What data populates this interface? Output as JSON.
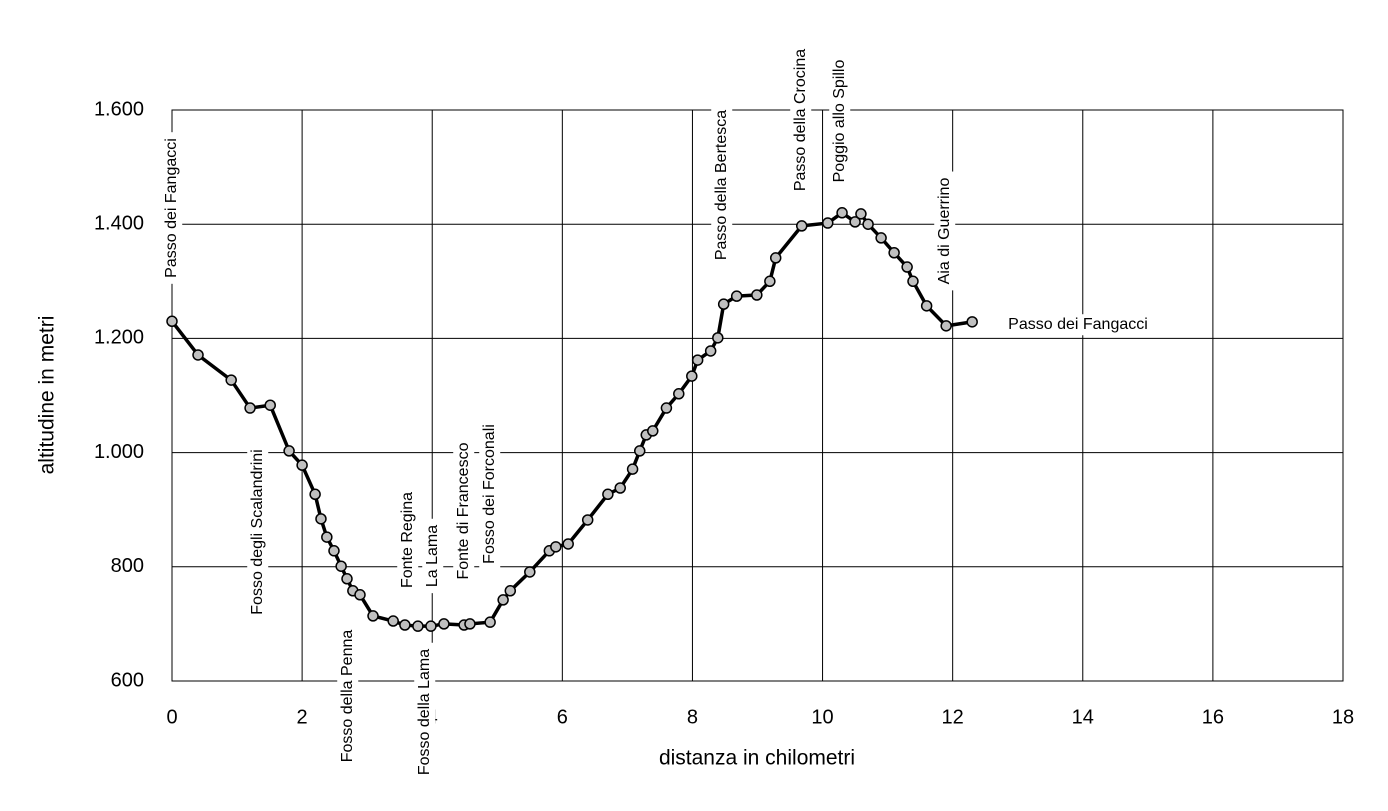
{
  "chart_data": {
    "type": "line",
    "x_label": "distanza in chilometri",
    "y_label": "altitudine  in metri",
    "x": [
      0,
      0.4,
      0.91,
      1.2,
      1.51,
      1.8,
      2.0,
      2.2,
      2.29,
      2.38,
      2.49,
      2.6,
      2.69,
      2.78,
      2.89,
      3.09,
      3.4,
      3.58,
      3.78,
      3.98,
      4.18,
      4.49,
      4.58,
      4.89,
      5.09,
      5.2,
      5.5,
      5.8,
      5.9,
      6.09,
      6.39,
      6.7,
      6.89,
      7.08,
      7.19,
      7.29,
      7.39,
      7.6,
      7.79,
      7.99,
      8.08,
      8.28,
      8.39,
      8.48,
      8.68,
      8.99,
      9.19,
      9.28,
      9.68,
      10.08,
      10.3,
      10.5,
      10.59,
      10.7,
      10.9,
      11.1,
      11.3,
      11.39,
      11.6,
      11.9,
      12.3
    ],
    "series": [
      {
        "color": "#000000",
        "marker_color": "#c0c0c0",
        "values": [
          1230,
          1171,
          1127,
          1078,
          1083,
          1003,
          978,
          927,
          884,
          852,
          828,
          801,
          779,
          758,
          751,
          714,
          705,
          698,
          696,
          696,
          700,
          698,
          700,
          703,
          742,
          758,
          791,
          828,
          835,
          840,
          882,
          927,
          938,
          971,
          1003,
          1031,
          1038,
          1078,
          1103,
          1134,
          1162,
          1178,
          1201,
          1260,
          1274,
          1276,
          1300,
          1341,
          1397,
          1402,
          1420,
          1404,
          1418,
          1400,
          1376,
          1350,
          1325,
          1300,
          1257,
          1222,
          1229
        ]
      }
    ],
    "xlim": [
      0,
      18
    ],
    "xticks": [
      0,
      2,
      4,
      6,
      8,
      10,
      12,
      14,
      16,
      18
    ],
    "ylim": [
      600,
      1600
    ],
    "yticks": [
      600,
      800,
      {
        "value": 1000,
        "label": "1.000"
      },
      {
        "value": 1200,
        "label": "1.200"
      },
      {
        "value": 1400,
        "label": "1.400"
      },
      {
        "value": 1600,
        "label": "1.600"
      }
    ],
    "grid": true,
    "annotations": [
      "Passo dei Fangacci",
      "Fosso degli Scalandrini",
      "Fosso della Penna",
      "Fonte Regina",
      "La Lama",
      "Fosso della Lama",
      "Fonte di Francesco",
      "Fosso dei Forconali",
      "Passo della Bertesca",
      "Passo della Crocina",
      "Poggio allo Spillo",
      "Aia di Guerrino",
      "Passo dei Fangacci"
    ]
  }
}
